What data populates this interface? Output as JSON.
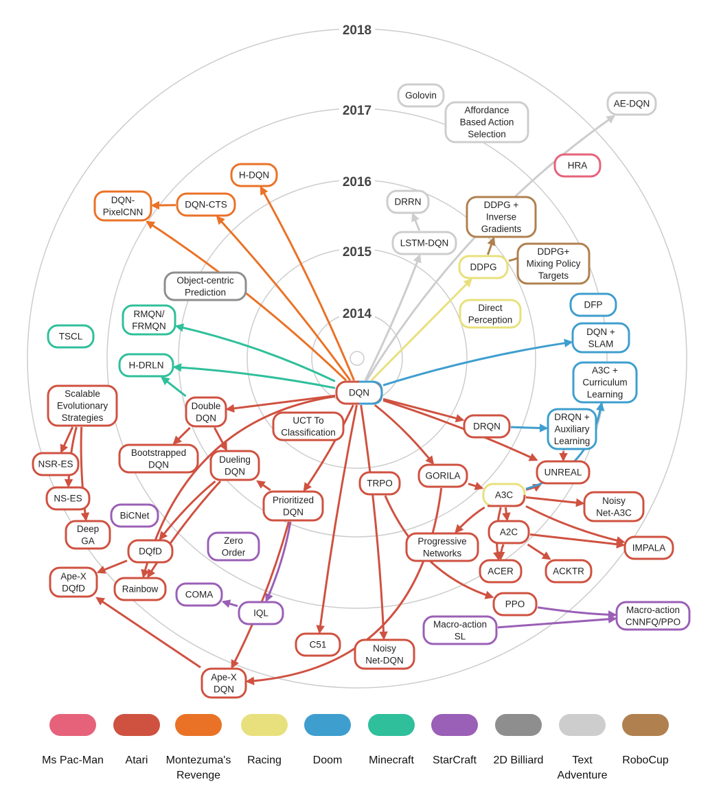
{
  "colors": {
    "ms_pacman": "#E6627A",
    "atari": "#CF5140",
    "montezuma": "#EA7226",
    "racing": "#E8E07C",
    "doom": "#3E9ECE",
    "minecraft": "#2FBF9B",
    "starcraft": "#9A5FB6",
    "billiard": "#8E8E8E",
    "text_adventure": "#CDCDCD",
    "robocup": "#B0804F"
  },
  "years": [
    "2014",
    "2015",
    "2016",
    "2017",
    "2018"
  ],
  "legend": [
    {
      "label": "Ms Pac-Man",
      "color": "ms_pacman"
    },
    {
      "label": "Atari",
      "color": "atari"
    },
    {
      "label": "Montezuma's\nRevenge",
      "color": "montezuma"
    },
    {
      "label": "Racing",
      "color": "racing"
    },
    {
      "label": "Doom",
      "color": "doom"
    },
    {
      "label": "Minecraft",
      "color": "minecraft"
    },
    {
      "label": "StarCraft",
      "color": "starcraft"
    },
    {
      "label": "2D Billiard",
      "color": "billiard"
    },
    {
      "label": "Text\nAdventure",
      "color": "text_adventure"
    },
    {
      "label": "RoboCup",
      "color": "robocup"
    }
  ],
  "nodes": [
    {
      "id": "dqn",
      "label": "DQN",
      "color": "atari",
      "color2": "doom"
    },
    {
      "id": "golovin",
      "label": "Golovin",
      "color": "text_adventure"
    },
    {
      "id": "affordance",
      "label": "Affordance\nBased Action\nSelection",
      "color": "text_adventure"
    },
    {
      "id": "aedqn",
      "label": "AE-DQN",
      "color": "text_adventure"
    },
    {
      "id": "hra",
      "label": "HRA",
      "color": "ms_pacman"
    },
    {
      "id": "hdqn",
      "label": "H-DQN",
      "color": "montezuma"
    },
    {
      "id": "dqncts",
      "label": "DQN-CTS",
      "color": "montezuma"
    },
    {
      "id": "dqnpixel",
      "label": "DQN-\nPixelCNN",
      "color": "montezuma"
    },
    {
      "id": "drrn",
      "label": "DRRN",
      "color": "text_adventure"
    },
    {
      "id": "lstmdqn",
      "label": "LSTM-DQN",
      "color": "text_adventure"
    },
    {
      "id": "ddpginv",
      "label": "DDPG +\nInverse\nGradients",
      "color": "robocup"
    },
    {
      "id": "ddpg",
      "label": "DDPG",
      "color": "racing"
    },
    {
      "id": "ddpgmix",
      "label": "DDPG+\nMixing Policy\nTargets",
      "color": "robocup"
    },
    {
      "id": "objcentric",
      "label": "Object-centric\nPrediction",
      "color": "billiard"
    },
    {
      "id": "rmqn",
      "label": "RMQN/\nFRMQN",
      "color": "minecraft"
    },
    {
      "id": "direct",
      "label": "Direct\nPerception",
      "color": "racing"
    },
    {
      "id": "dfp",
      "label": "DFP",
      "color": "doom"
    },
    {
      "id": "tscl",
      "label": "TSCL",
      "color": "minecraft"
    },
    {
      "id": "dqnslam",
      "label": "DQN +\nSLAM",
      "color": "doom"
    },
    {
      "id": "hdrln",
      "label": "H-DRLN",
      "color": "minecraft"
    },
    {
      "id": "a3ccurr",
      "label": "A3C +\nCurriculum\nLearning",
      "color": "doom"
    },
    {
      "id": "ses",
      "label": "Scalable\nEvolutionary\nStrategies",
      "color": "atari"
    },
    {
      "id": "doubledqn",
      "label": "Double\nDQN",
      "color": "atari"
    },
    {
      "id": "uct",
      "label": "UCT To\nClassification",
      "color": "atari"
    },
    {
      "id": "drqn",
      "label": "DRQN",
      "color": "atari"
    },
    {
      "id": "drqnaux",
      "label": "DRQN +\nAuxiliary\nLearning",
      "color": "doom"
    },
    {
      "id": "nsres",
      "label": "NSR-ES",
      "color": "atari"
    },
    {
      "id": "bootdqn",
      "label": "Bootstrapped\nDQN",
      "color": "atari"
    },
    {
      "id": "dueling",
      "label": "Dueling\nDQN",
      "color": "atari"
    },
    {
      "id": "unreal",
      "label": "UNREAL",
      "color": "atari"
    },
    {
      "id": "trpo",
      "label": "TRPO",
      "color": "atari"
    },
    {
      "id": "gorila",
      "label": "GORILA",
      "color": "atari"
    },
    {
      "id": "nses",
      "label": "NS-ES",
      "color": "atari"
    },
    {
      "id": "prioritized",
      "label": "Prioritized\nDQN",
      "color": "atari"
    },
    {
      "id": "a3c",
      "label": "A3C",
      "color": "atari",
      "fill": "racing"
    },
    {
      "id": "noisya3c",
      "label": "Noisy\nNet-A3C",
      "color": "atari"
    },
    {
      "id": "bicnet",
      "label": "BiCNet",
      "color": "starcraft"
    },
    {
      "id": "deepga",
      "label": "Deep\nGA",
      "color": "atari"
    },
    {
      "id": "a2c",
      "label": "A2C",
      "color": "atari"
    },
    {
      "id": "progressive",
      "label": "Progressive\nNetworks",
      "color": "atari"
    },
    {
      "id": "zeroorder",
      "label": "Zero\nOrder",
      "color": "starcraft"
    },
    {
      "id": "dqfd",
      "label": "DQfD",
      "color": "atari"
    },
    {
      "id": "impala",
      "label": "IMPALA",
      "color": "atari"
    },
    {
      "id": "acer",
      "label": "ACER",
      "color": "atari"
    },
    {
      "id": "acktr",
      "label": "ACKTR",
      "color": "atari"
    },
    {
      "id": "apexdqfd",
      "label": "Ape-X\nDQfD",
      "color": "atari"
    },
    {
      "id": "rainbow",
      "label": "Rainbow",
      "color": "atari"
    },
    {
      "id": "coma",
      "label": "COMA",
      "color": "starcraft"
    },
    {
      "id": "ppo",
      "label": "PPO",
      "color": "atari"
    },
    {
      "id": "macrocnn",
      "label": "Macro-action\nCNNFQ/PPO",
      "color": "starcraft"
    },
    {
      "id": "iql",
      "label": "IQL",
      "color": "starcraft"
    },
    {
      "id": "macrosl",
      "label": "Macro-action\nSL",
      "color": "starcraft"
    },
    {
      "id": "c51",
      "label": "C51",
      "color": "atari"
    },
    {
      "id": "noisydqn",
      "label": "Noisy\nNet-DQN",
      "color": "atari"
    },
    {
      "id": "apexdqn",
      "label": "Ape-X\nDQN",
      "color": "atari"
    }
  ],
  "edges": [
    [
      "dqn",
      "hdqn",
      "montezuma"
    ],
    [
      "dqn",
      "dqncts",
      "montezuma"
    ],
    [
      "dqn",
      "dqnpixel",
      "montezuma"
    ],
    [
      "dqncts",
      "dqnpixel",
      "montezuma"
    ],
    [
      "dqn",
      "lstmdqn",
      "text_adventure"
    ],
    [
      "lstmdqn",
      "drrn",
      "text_adventure"
    ],
    [
      "dqn",
      "aedqn",
      "text_adventure"
    ],
    [
      "dqn",
      "ddpg",
      "racing"
    ],
    [
      "ddpg",
      "ddpginv",
      "robocup"
    ],
    [
      "ddpg",
      "ddpgmix",
      "robocup"
    ],
    [
      "dqn",
      "rmqn",
      "minecraft"
    ],
    [
      "dqn",
      "hdrln",
      "minecraft"
    ],
    [
      "doubledqn",
      "hdrln",
      "minecraft"
    ],
    [
      "dqn",
      "dqnslam",
      "doom"
    ],
    [
      "dqn",
      "doubledqn",
      "atari"
    ],
    [
      "doubledqn",
      "bootdqn",
      "atari"
    ],
    [
      "doubledqn",
      "dueling",
      "atari"
    ],
    [
      "dqn",
      "drqn",
      "atari"
    ],
    [
      "drqn",
      "drqnaux",
      "doom"
    ],
    [
      "dqn",
      "unreal",
      "atari"
    ],
    [
      "dqn",
      "gorila",
      "atari"
    ],
    [
      "gorila",
      "a3c",
      "atari"
    ],
    [
      "dqn",
      "prioritized",
      "atari"
    ],
    [
      "prioritized",
      "dueling",
      "atari"
    ],
    [
      "prioritized",
      "iql",
      "starcraft"
    ],
    [
      "prioritized",
      "apexdqn",
      "atari"
    ],
    [
      "dqn",
      "c51",
      "atari"
    ],
    [
      "dqn",
      "noisydqn",
      "atari"
    ],
    [
      "dqn",
      "rainbow",
      "atari"
    ],
    [
      "gorila",
      "apexdqn",
      "atari"
    ],
    [
      "a3c",
      "unreal",
      "atari"
    ],
    [
      "a3c",
      "a3ccurr",
      "doom"
    ],
    [
      "a3c",
      "noisya3c",
      "atari"
    ],
    [
      "a3c",
      "a2c",
      "atari"
    ],
    [
      "a3c",
      "progressive",
      "atari"
    ],
    [
      "a3c",
      "acer",
      "atari"
    ],
    [
      "a3c",
      "impala",
      "atari"
    ],
    [
      "a2c",
      "impala",
      "atari"
    ],
    [
      "a2c",
      "acktr",
      "atari"
    ],
    [
      "a2c",
      "acer",
      "atari"
    ],
    [
      "trpo",
      "ppo",
      "atari"
    ],
    [
      "ppo",
      "macrocnn",
      "starcraft"
    ],
    [
      "macrosl",
      "macrocnn",
      "starcraft"
    ],
    [
      "ses",
      "nsres",
      "atari"
    ],
    [
      "ses",
      "nses",
      "atari"
    ],
    [
      "ses",
      "deepga",
      "atari"
    ],
    [
      "dueling",
      "dqfd",
      "atari"
    ],
    [
      "dueling",
      "rainbow",
      "atari"
    ],
    [
      "dqfd",
      "apexdqfd",
      "atari"
    ],
    [
      "apexdqn",
      "apexdqfd",
      "atari"
    ],
    [
      "iql",
      "coma",
      "starcraft"
    ],
    [
      "drqnaux",
      "unreal",
      "atari"
    ]
  ]
}
